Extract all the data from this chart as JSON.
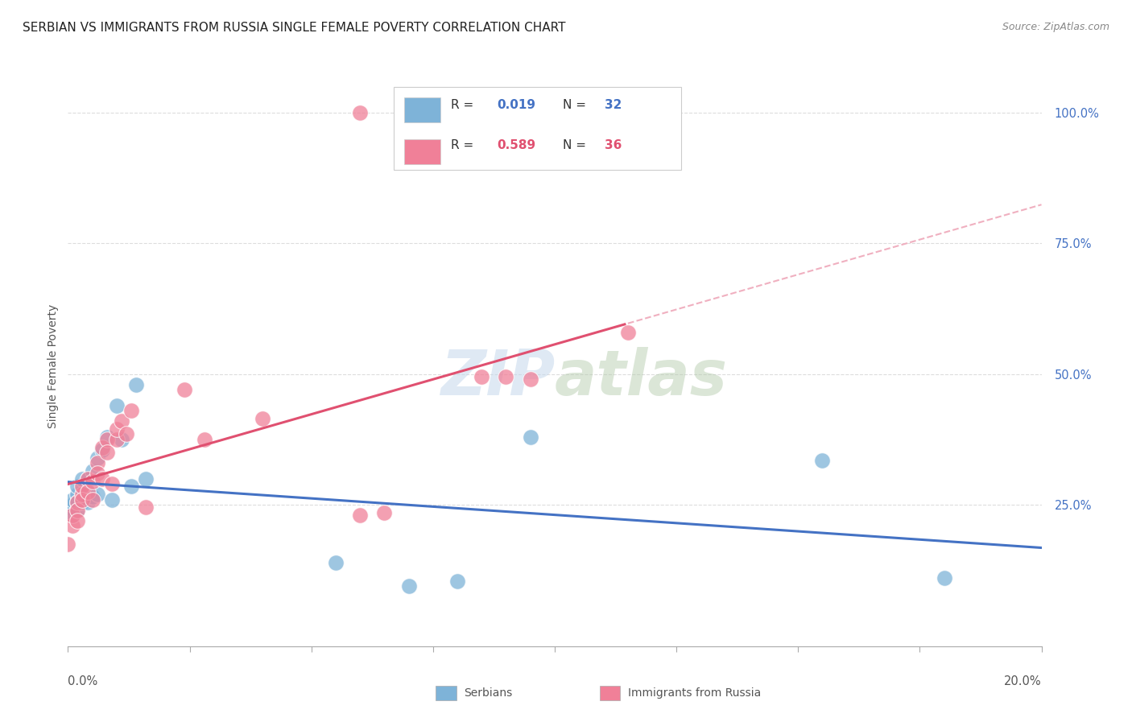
{
  "title": "SERBIAN VS IMMIGRANTS FROM RUSSIA SINGLE FEMALE POVERTY CORRELATION CHART",
  "source": "Source: ZipAtlas.com",
  "ylabel": "Single Female Poverty",
  "xlim": [
    0.0,
    0.2
  ],
  "ylim": [
    -0.02,
    1.05
  ],
  "plot_ylim": [
    0.0,
    1.05
  ],
  "watermark": "ZIPatlas",
  "serbian_x": [
    0.0,
    0.001,
    0.001,
    0.001,
    0.002,
    0.002,
    0.002,
    0.002,
    0.003,
    0.003,
    0.003,
    0.004,
    0.004,
    0.004,
    0.005,
    0.005,
    0.006,
    0.006,
    0.007,
    0.008,
    0.009,
    0.01,
    0.011,
    0.013,
    0.014,
    0.016,
    0.055,
    0.07,
    0.08,
    0.095,
    0.155,
    0.18
  ],
  "serbian_y": [
    0.245,
    0.23,
    0.25,
    0.26,
    0.27,
    0.285,
    0.255,
    0.24,
    0.3,
    0.265,
    0.255,
    0.275,
    0.3,
    0.255,
    0.315,
    0.265,
    0.34,
    0.27,
    0.355,
    0.38,
    0.26,
    0.44,
    0.375,
    0.285,
    0.48,
    0.3,
    0.14,
    0.095,
    0.105,
    0.38,
    0.335,
    0.11
  ],
  "russia_x": [
    0.0,
    0.001,
    0.001,
    0.002,
    0.002,
    0.002,
    0.003,
    0.003,
    0.003,
    0.004,
    0.004,
    0.005,
    0.005,
    0.006,
    0.006,
    0.007,
    0.007,
    0.008,
    0.008,
    0.009,
    0.01,
    0.01,
    0.011,
    0.012,
    0.013,
    0.016,
    0.024,
    0.028,
    0.04,
    0.06,
    0.065,
    0.085,
    0.09,
    0.095,
    0.115,
    0.06
  ],
  "russia_y": [
    0.175,
    0.21,
    0.23,
    0.255,
    0.24,
    0.22,
    0.27,
    0.285,
    0.26,
    0.3,
    0.275,
    0.295,
    0.26,
    0.33,
    0.31,
    0.36,
    0.3,
    0.375,
    0.35,
    0.29,
    0.375,
    0.395,
    0.41,
    0.385,
    0.43,
    0.245,
    0.47,
    0.375,
    0.415,
    0.23,
    0.235,
    0.495,
    0.495,
    0.49,
    0.58,
    1.0
  ],
  "serbian_color": "#7eb3d8",
  "russia_color": "#f08098",
  "serbian_line_color": "#4472c4",
  "russia_line_color": "#e05070",
  "russia_dashed_color": "#f0b0c0",
  "grid_color": "#dddddd",
  "background_color": "#ffffff",
  "title_fontsize": 11,
  "source_fontsize": 9,
  "ytick_vals": [
    0.25,
    0.5,
    0.75,
    1.0
  ],
  "ytick_labels": [
    "25.0%",
    "50.0%",
    "75.0%",
    "100.0%"
  ]
}
